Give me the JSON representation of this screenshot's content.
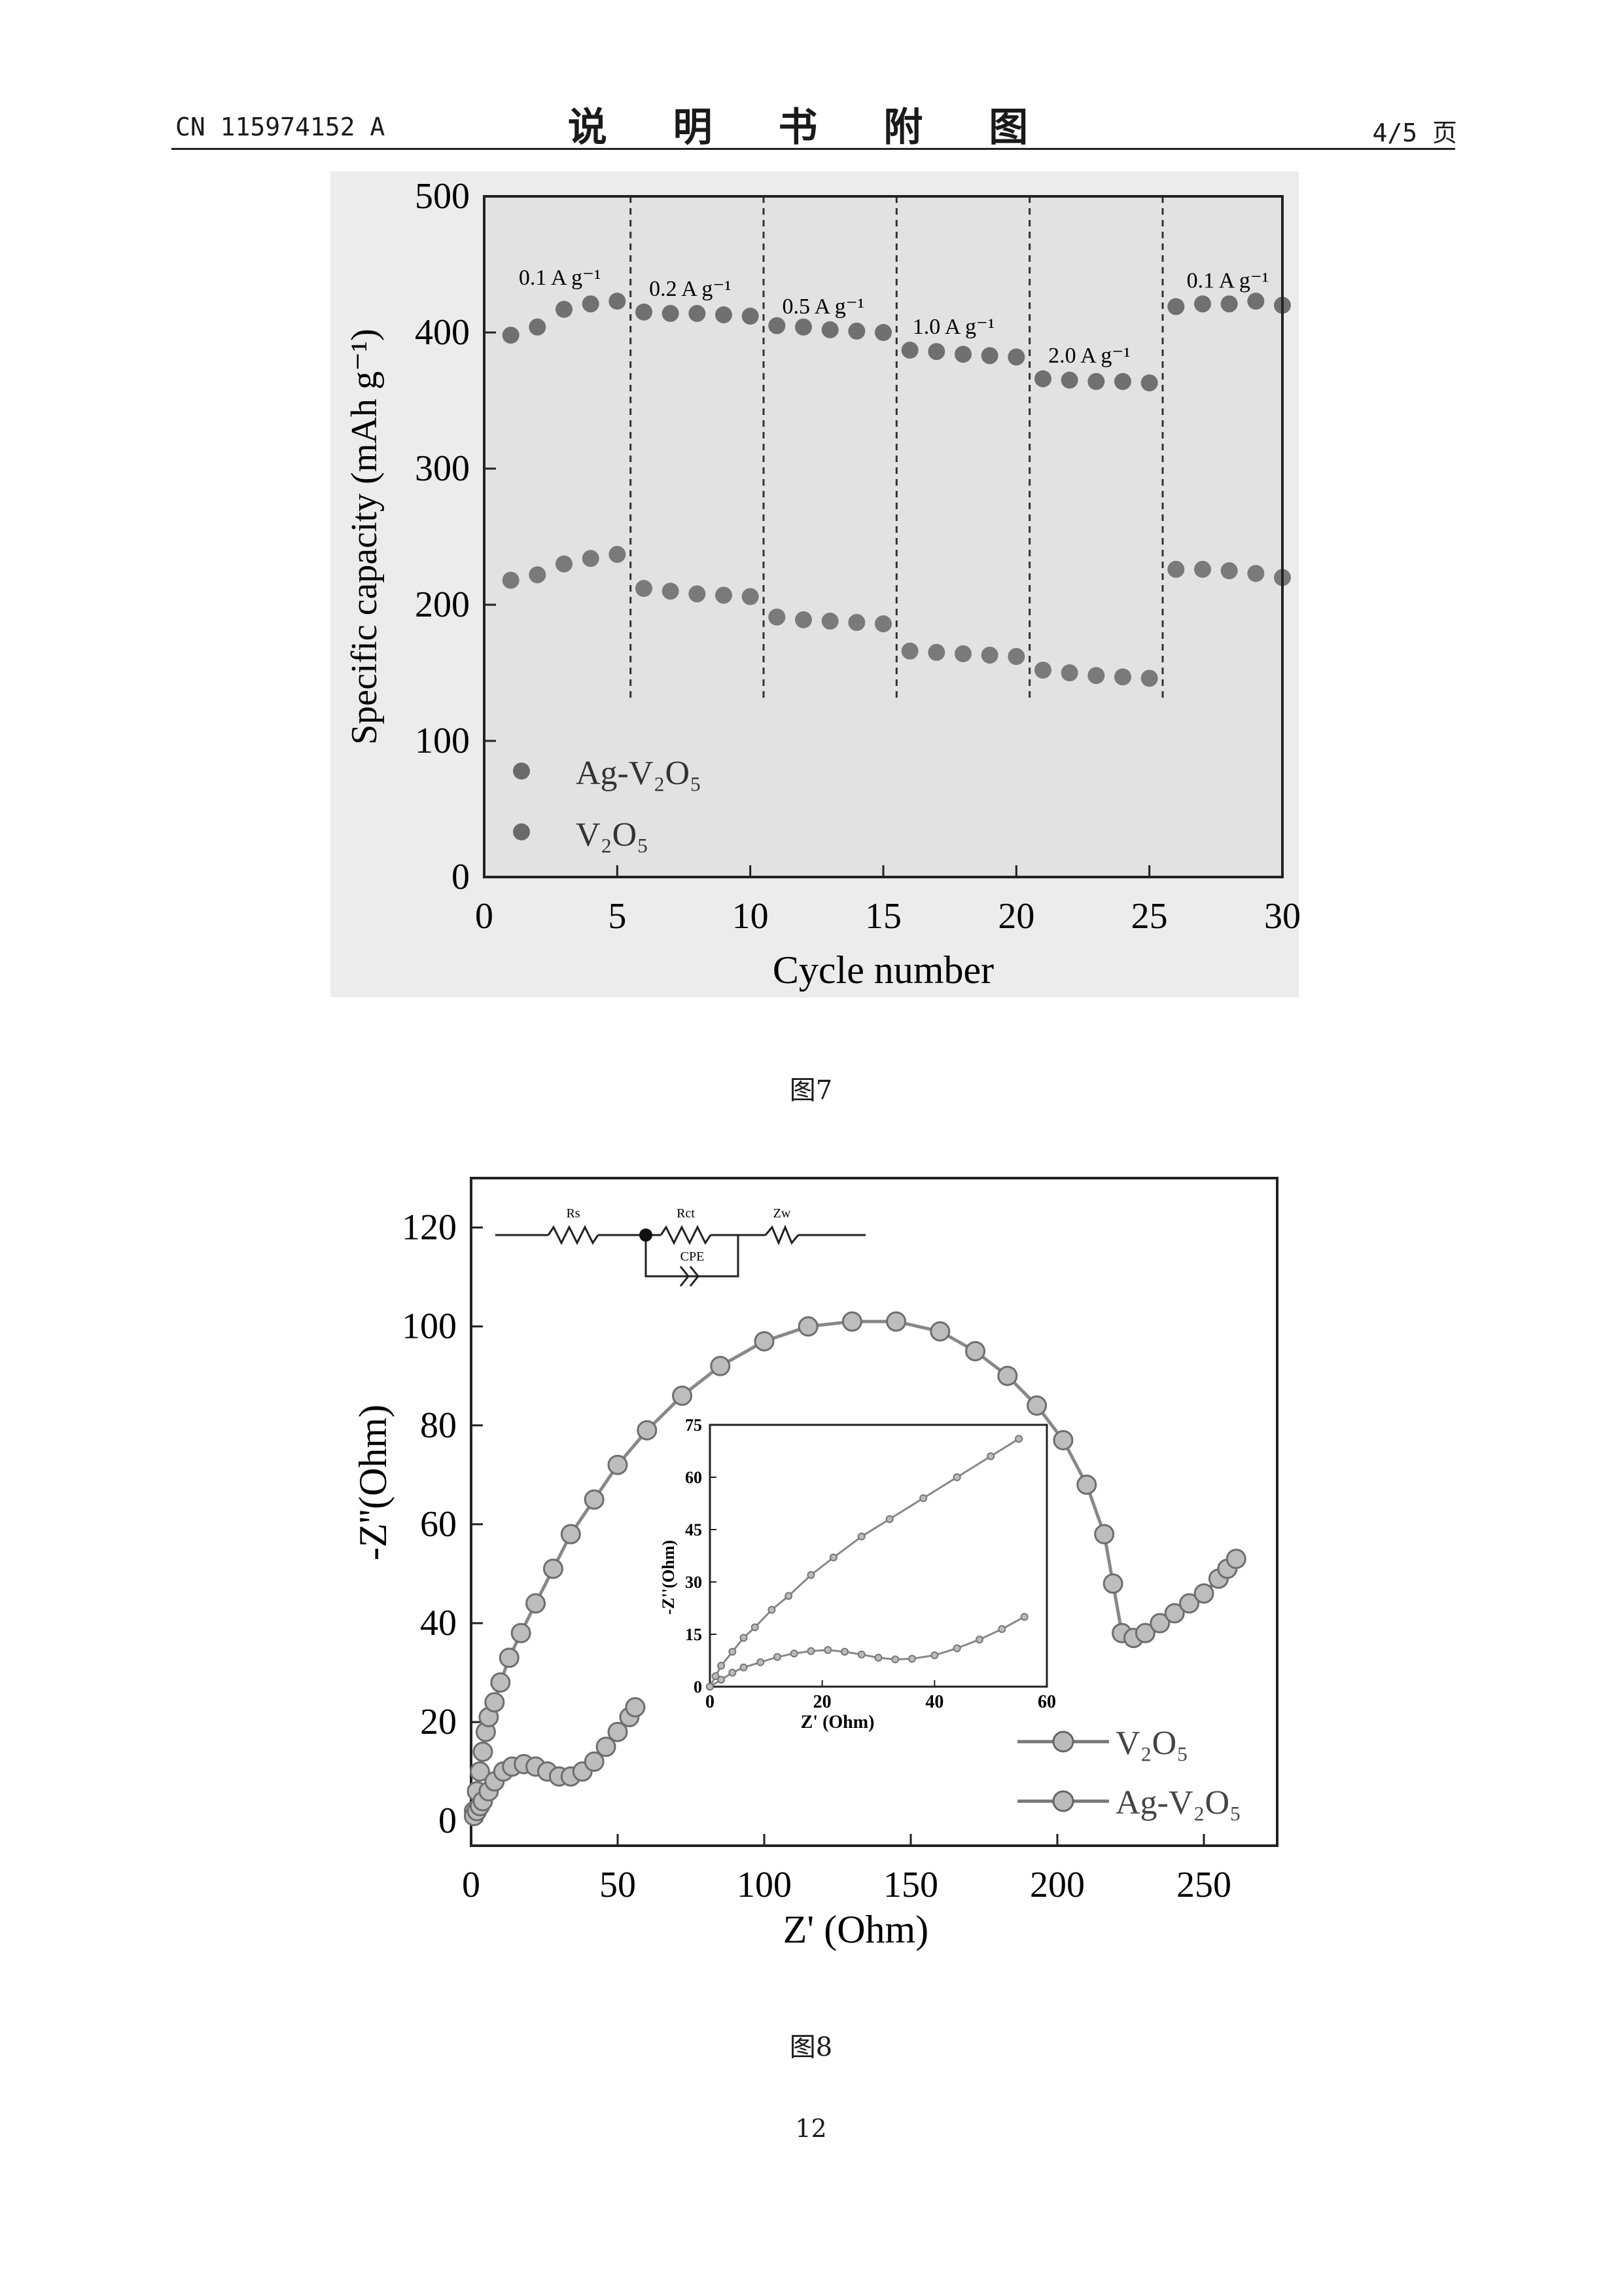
{
  "header": {
    "doc_number": "CN 115974152 A",
    "title": "说 明 书 附 图",
    "page_of": "4/5 页"
  },
  "figure7": {
    "caption": "图7",
    "chart_data": {
      "type": "scatter",
      "xlabel": "Cycle number",
      "ylabel": "Specific capacity (mAh g⁻¹)",
      "xlim": [
        0,
        30
      ],
      "ylim": [
        0,
        500
      ],
      "x_ticks": [
        0,
        5,
        10,
        15,
        20,
        25,
        30
      ],
      "y_ticks": [
        0,
        100,
        200,
        300,
        400,
        500
      ],
      "rate_dividers": [
        5.5,
        10.5,
        15.5,
        20.5,
        25.5
      ],
      "rate_labels": [
        {
          "text": "0.1 A g⁻¹",
          "x": 1.3,
          "y": 435
        },
        {
          "text": "0.2 A g⁻¹",
          "x": 6.2,
          "y": 427
        },
        {
          "text": "0.5 A g⁻¹",
          "x": 11.2,
          "y": 414
        },
        {
          "text": "1.0 A g⁻¹",
          "x": 16.1,
          "y": 399
        },
        {
          "text": "2.0 A g⁻¹",
          "x": 21.2,
          "y": 378
        },
        {
          "text": "0.1 A g⁻¹",
          "x": 26.4,
          "y": 433
        }
      ],
      "legend_position": "bottom-left",
      "series": [
        {
          "name": "Ag-V₂O₅",
          "x": [
            1,
            2,
            3,
            4,
            5,
            6,
            7,
            8,
            9,
            10,
            11,
            12,
            13,
            14,
            15,
            16,
            17,
            18,
            19,
            20,
            21,
            22,
            23,
            24,
            25,
            26,
            27,
            28,
            29,
            30
          ],
          "values": [
            398,
            404,
            417,
            421,
            423,
            415,
            414,
            414,
            413,
            412,
            405,
            404,
            402,
            401,
            400,
            387,
            386,
            384,
            383,
            382,
            366,
            365,
            364,
            364,
            363,
            419,
            421,
            421,
            423,
            420
          ]
        },
        {
          "name": "V₂O₅",
          "x": [
            1,
            2,
            3,
            4,
            5,
            6,
            7,
            8,
            9,
            10,
            11,
            12,
            13,
            14,
            15,
            16,
            17,
            18,
            19,
            20,
            21,
            22,
            23,
            24,
            25,
            26,
            27,
            28,
            29,
            30
          ],
          "values": [
            218,
            222,
            230,
            234,
            237,
            212,
            210,
            208,
            207,
            206,
            191,
            189,
            188,
            187,
            186,
            166,
            165,
            164,
            163,
            162,
            152,
            150,
            148,
            147,
            146,
            226,
            226,
            225,
            223,
            220
          ]
        }
      ]
    }
  },
  "figure8": {
    "caption": "图8",
    "chart_data": {
      "type": "line",
      "xlabel": "Z' (Ohm)",
      "ylabel": "-Z''(Ohm)",
      "xlim": [
        0,
        275
      ],
      "ylim": [
        -5,
        130
      ],
      "x_ticks": [
        0,
        50,
        100,
        150,
        200,
        250
      ],
      "y_ticks": [
        0,
        20,
        40,
        60,
        80,
        100,
        120
      ],
      "legend_position": "bottom-right",
      "circuit_labels": [
        "Rs",
        "Rct",
        "Zw",
        "CPE"
      ],
      "series": [
        {
          "name": "V₂O₅",
          "x": [
            1,
            2,
            3,
            4,
            5,
            6,
            8,
            10,
            13,
            17,
            22,
            28,
            34,
            42,
            50,
            60,
            72,
            85,
            100,
            115,
            130,
            145,
            160,
            172,
            183,
            193,
            202,
            210,
            216,
            219,
            222,
            226,
            230,
            235,
            240,
            245,
            250,
            255,
            258,
            261
          ],
          "y": [
            2,
            6,
            10,
            14,
            18,
            21,
            24,
            28,
            33,
            38,
            44,
            51,
            58,
            65,
            72,
            79,
            86,
            92,
            97,
            100,
            101,
            101,
            99,
            95,
            90,
            84,
            77,
            68,
            58,
            48,
            38,
            37,
            38,
            40,
            42,
            44,
            46,
            49,
            51,
            53
          ]
        },
        {
          "name": "Ag-V₂O₅",
          "x": [
            1,
            2,
            3,
            4,
            6,
            8,
            11,
            14,
            18,
            22,
            26,
            30,
            34,
            38,
            42,
            46,
            50,
            54,
            56
          ],
          "y": [
            1,
            2,
            3,
            4,
            6,
            8,
            10,
            11,
            11.5,
            11,
            10,
            9,
            9,
            10,
            12,
            15,
            18,
            21,
            23
          ]
        }
      ],
      "inset": {
        "xlabel": "Z' (Ohm)",
        "ylabel": "-Z''(Ohm)",
        "xlim": [
          0,
          60
        ],
        "ylim": [
          0,
          75
        ],
        "x_ticks": [
          0,
          20,
          40,
          60
        ],
        "y_ticks": [
          0,
          15,
          30,
          45,
          60,
          75
        ],
        "series": [
          {
            "name": "V₂O₅",
            "x": [
              0,
              1,
              2,
              4,
              6,
              8,
              11,
              14,
              18,
              22,
              27,
              32,
              38,
              44,
              50,
              55
            ],
            "y": [
              0,
              3,
              6,
              10,
              14,
              17,
              22,
              26,
              32,
              37,
              43,
              48,
              54,
              60,
              66,
              71
            ]
          },
          {
            "name": "Ag-V₂O₅",
            "x": [
              0,
              2,
              4,
              6,
              9,
              12,
              15,
              18,
              21,
              24,
              27,
              30,
              33,
              36,
              40,
              44,
              48,
              52,
              56
            ],
            "y": [
              0,
              2,
              4,
              5.5,
              7,
              8.5,
              9.5,
              10.2,
              10.5,
              10,
              9.2,
              8.3,
              7.8,
              8,
              9,
              11,
              13.5,
              16.5,
              20
            ]
          }
        ]
      }
    }
  },
  "page_number": "12"
}
